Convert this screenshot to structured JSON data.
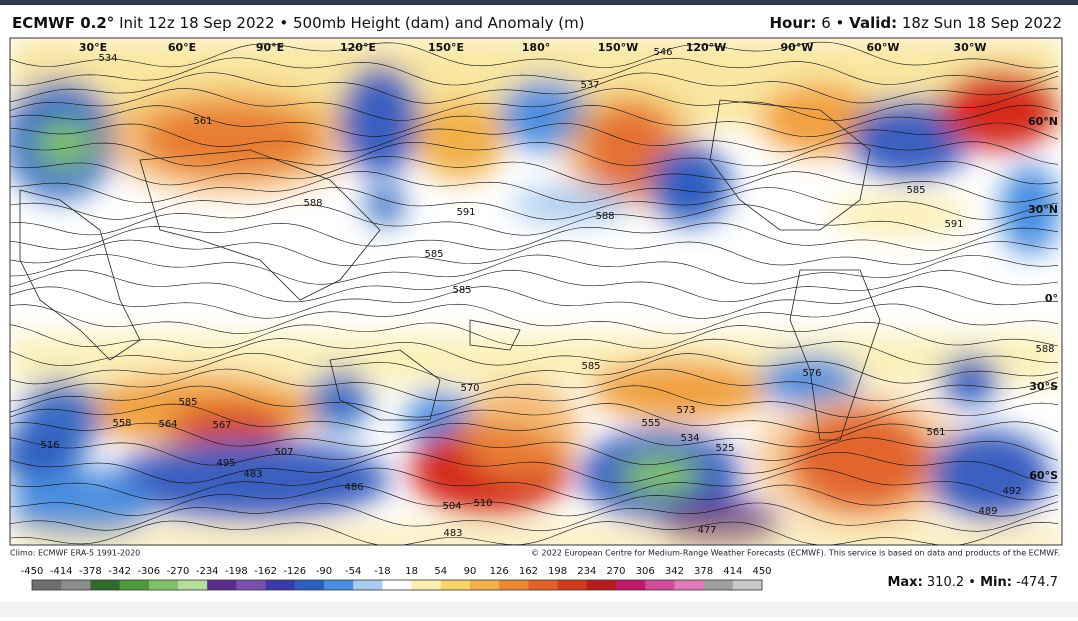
{
  "header": {
    "model": "ECMWF 0.2°",
    "title": "Init 12z 18 Sep 2022 • 500mb Height (dam) and Anomaly (m)",
    "hour_label": "Hour:",
    "hour": "6",
    "separator": "•",
    "valid_label": "Valid:",
    "valid": "18z Sun 18 Sep 2022"
  },
  "map": {
    "longitude_labels": [
      "30°E",
      "60°E",
      "90°E",
      "120°E",
      "150°E",
      "180°",
      "150°W",
      "120°W",
      "90°W",
      "60°W",
      "30°W"
    ],
    "latitude_labels": [
      "60°N",
      "30°N",
      "0°",
      "30°S",
      "60°S"
    ],
    "contour_labels": [
      534,
      561,
      588,
      591,
      588,
      585,
      585,
      537,
      546,
      585,
      591,
      588,
      585,
      576,
      573,
      555,
      534,
      525,
      567,
      585,
      558,
      495,
      483,
      507,
      516,
      486,
      510,
      504,
      483,
      477,
      489,
      492,
      570,
      564,
      561
    ]
  },
  "footer": {
    "climo": "Climo: ECMWF ERA-5 1991-2020",
    "copyright": "© 2022 European Centre for Medium-Range Weather Forecasts (ECMWF). This service is based on data and products of the ECMWF."
  },
  "colorbar": {
    "ticks": [
      -450,
      -414,
      -378,
      -342,
      -306,
      -270,
      -234,
      -198,
      -162,
      -126,
      -90,
      -54,
      -18,
      18,
      54,
      90,
      126,
      162,
      198,
      234,
      270,
      306,
      342,
      378,
      414,
      450
    ],
    "colors": [
      "#6e6e6e",
      "#8c8c8c",
      "#2f6b2a",
      "#4c9a3a",
      "#7fc06a",
      "#b4dc9a",
      "#5a2d8c",
      "#7b4fb0",
      "#3a3aa8",
      "#2d5fc0",
      "#4a8ee0",
      "#a9cbef",
      "#ffffff",
      "#fbeeb0",
      "#f7d36a",
      "#f2b04a",
      "#ec8a34",
      "#e2602a",
      "#d23a20",
      "#b81c1c",
      "#c2186a",
      "#d24a9a",
      "#e07ab8",
      "#a0a0a0",
      "#c8c8c8"
    ]
  },
  "stats": {
    "max_label": "Max:",
    "max": 310.2,
    "separator": "•",
    "min_label": "Min:",
    "min": -474.7
  }
}
